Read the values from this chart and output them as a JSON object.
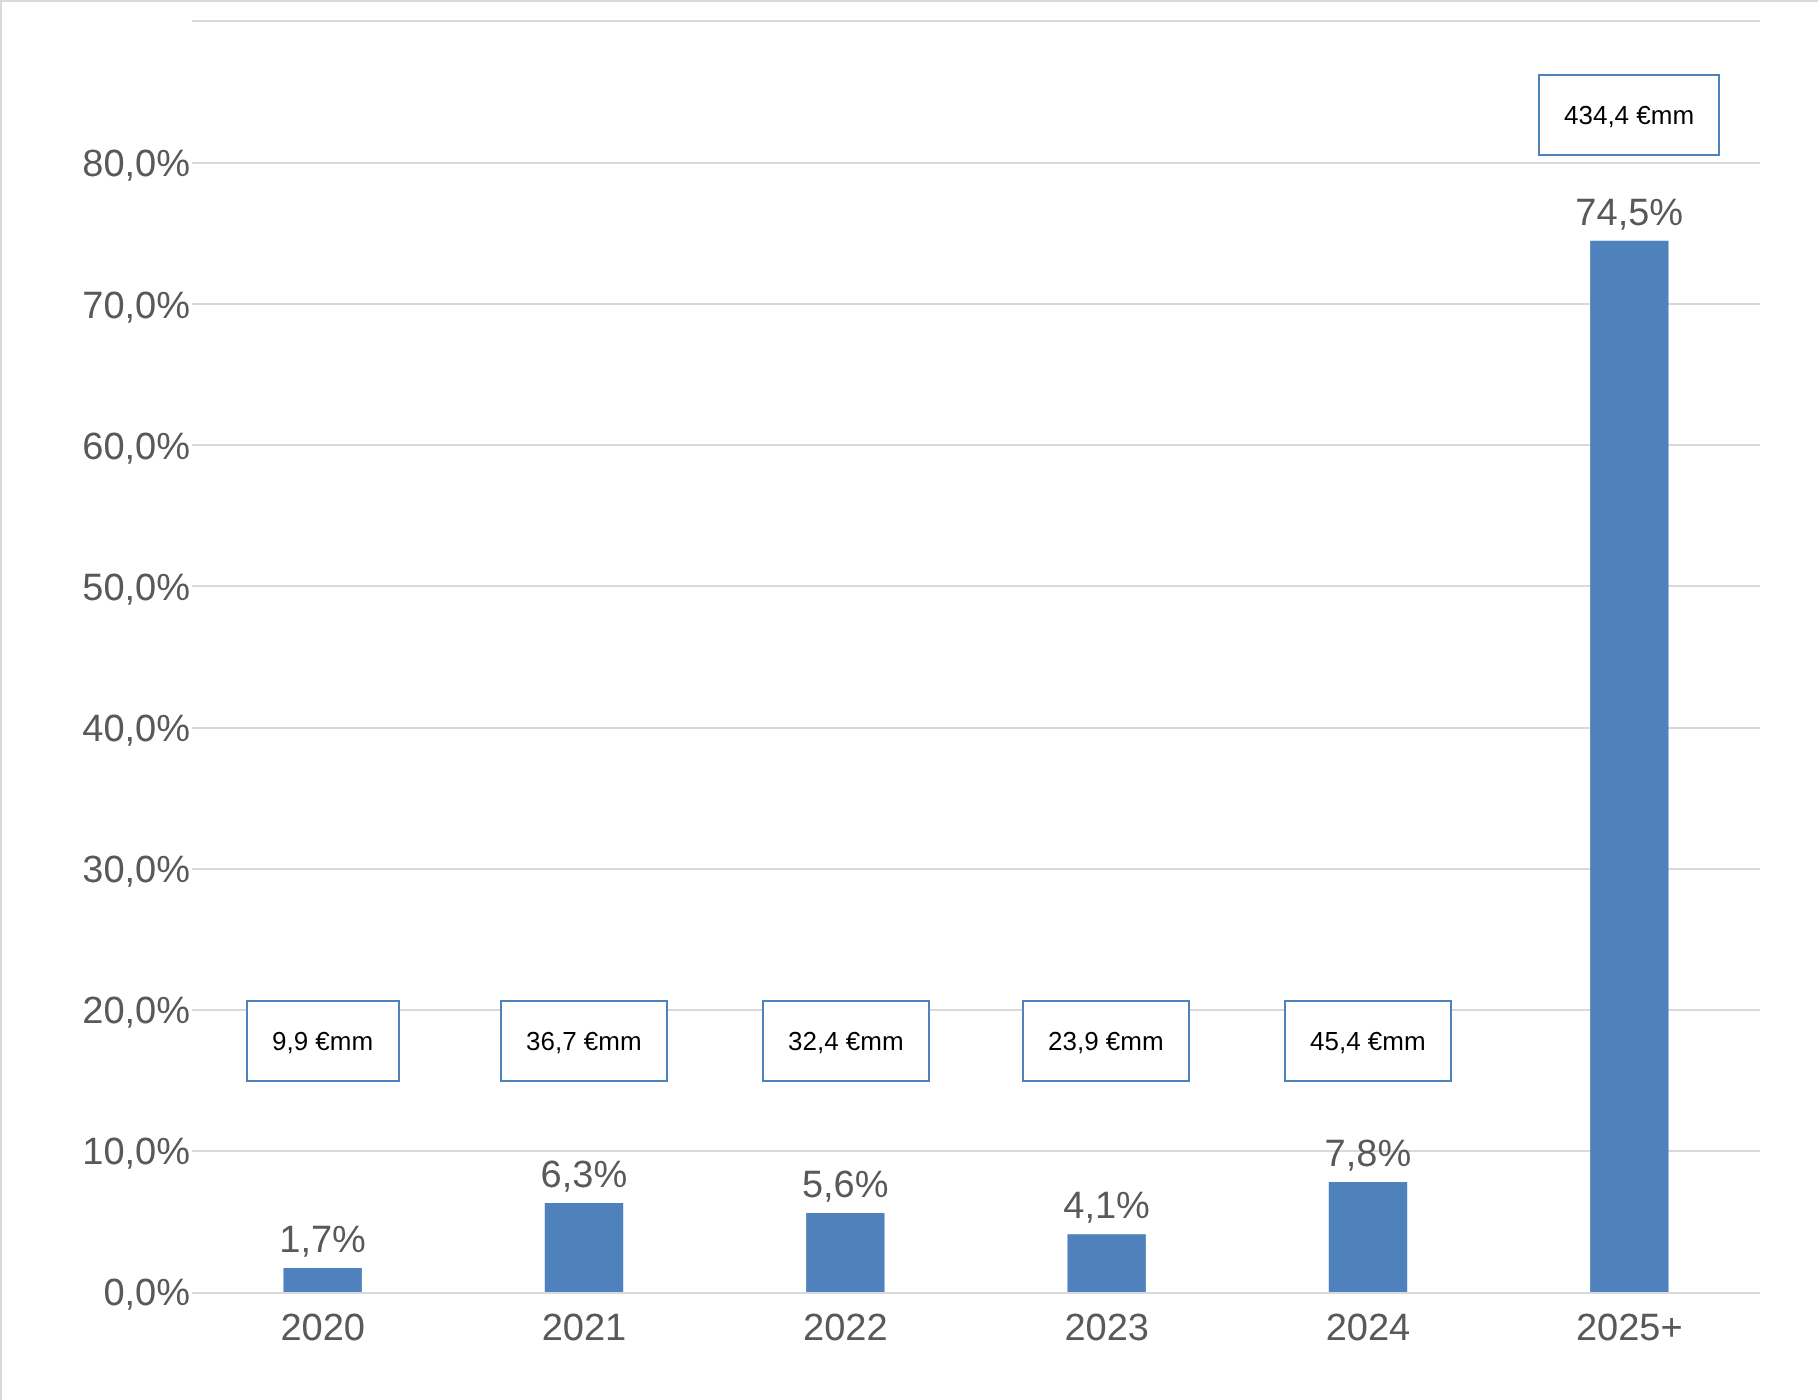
{
  "chart_data": {
    "type": "bar",
    "categories": [
      "2020",
      "2021",
      "2022",
      "2023",
      "2024",
      "2025+"
    ],
    "values": [
      1.7,
      6.3,
      5.6,
      4.1,
      7.8,
      74.5
    ],
    "value_labels": [
      "1,7%",
      "6,3%",
      "5,6%",
      "4,1%",
      "7,8%",
      "74,5%"
    ],
    "color": "#4f81bd",
    "ylim": [
      0,
      90
    ],
    "yticks": [
      {
        "value": 0,
        "label": "0,0%"
      },
      {
        "value": 10,
        "label": "10,0%"
      },
      {
        "value": 20,
        "label": "20,0%"
      },
      {
        "value": 30,
        "label": "30,0%"
      },
      {
        "value": 40,
        "label": "40,0%"
      },
      {
        "value": 50,
        "label": "50,0%"
      },
      {
        "value": 60,
        "label": "60,0%"
      },
      {
        "value": 70,
        "label": "70,0%"
      },
      {
        "value": 80,
        "label": "80,0%"
      }
    ],
    "grid": "y",
    "legend": false,
    "annotations": [
      "9,9 €mm",
      "36,7 €mm",
      "32,4 €mm",
      "23,9 €mm",
      "45,4 €mm",
      "434,4 €mm"
    ]
  }
}
